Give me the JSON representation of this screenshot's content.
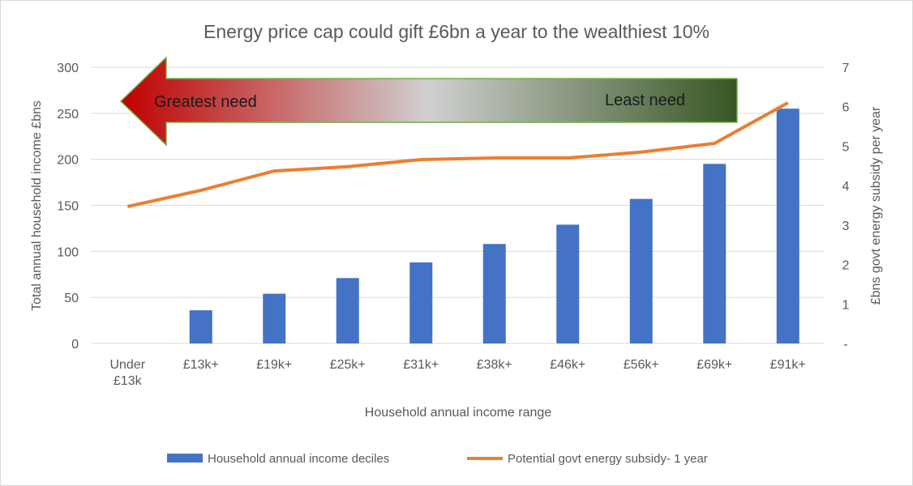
{
  "chart_data": {
    "type": "bar+line",
    "title": "Energy price cap could gift £6bn a year to the wealthiest 10%",
    "xlabel": "Household annual income range",
    "ylabel": "Total annual household income £bns",
    "y2label": "£bns govt energy subsidy per year",
    "categories": [
      "Under £13k",
      "£13k+",
      "£19k+",
      "£25k+",
      "£31k+",
      "£38k+",
      "£46k+",
      "£56k+",
      "£69k+",
      "£91k+"
    ],
    "ylim": [
      0,
      300
    ],
    "yticks": [
      "0",
      "50",
      "100",
      "150",
      "200",
      "250",
      "300"
    ],
    "y2lim": [
      0,
      7
    ],
    "y2ticks": [
      "-",
      "1",
      "2",
      "3",
      "4",
      "5",
      "6",
      "7"
    ],
    "grid": true,
    "legend_position": "bottom",
    "series": [
      {
        "name": "Household annual income deciles",
        "type": "bar",
        "axis": "left",
        "color": "#4472c4",
        "values": [
          0,
          36,
          54,
          71,
          88,
          108,
          129,
          157,
          195,
          255
        ]
      },
      {
        "name": "Potential govt energy subsidy- 1 year",
        "type": "line",
        "axis": "right",
        "color": "#ed7d31",
        "values": [
          3.47,
          3.88,
          4.37,
          4.48,
          4.66,
          4.7,
          4.7,
          4.85,
          5.07,
          6.1
        ]
      }
    ],
    "annotation": {
      "left_label": "Greatest need",
      "right_label": "Least need",
      "colors": [
        "#c00000",
        "#d0d0d0",
        "#375623"
      ]
    }
  }
}
